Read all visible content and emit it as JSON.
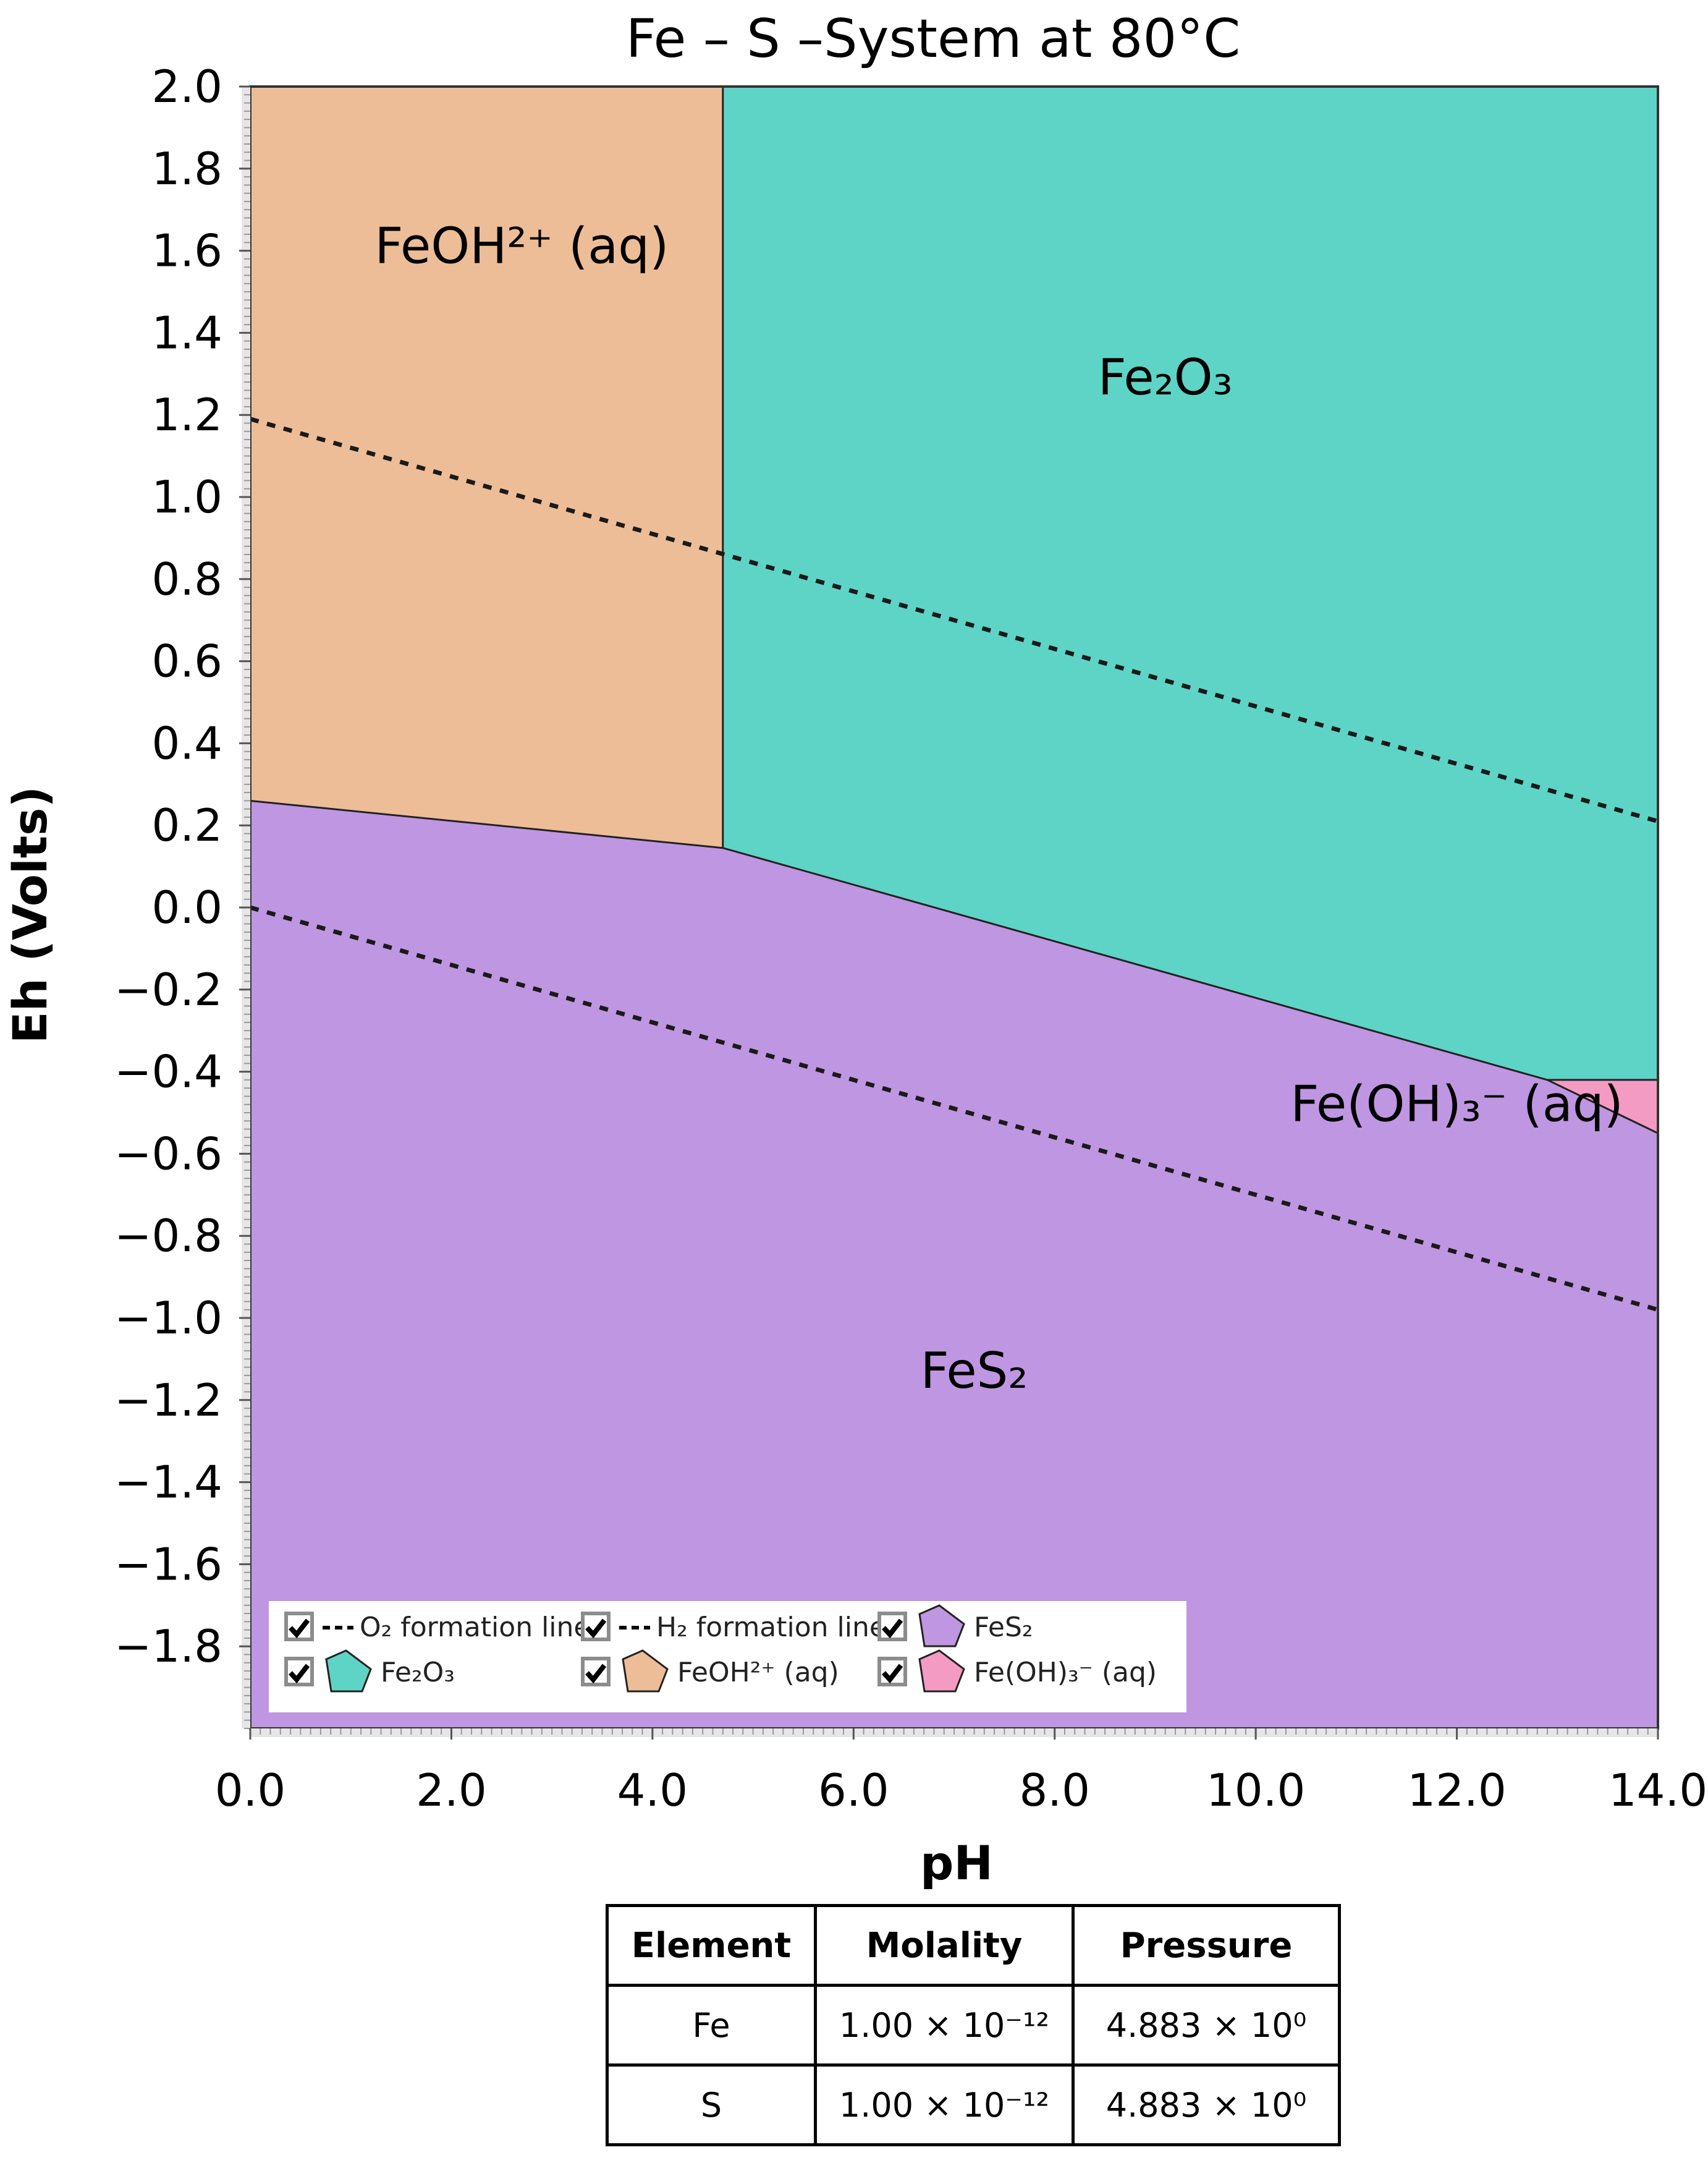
{
  "chart_data": {
    "type": "phase-diagram",
    "title": "Fe – S –System at 80°C",
    "xlabel": "pH",
    "ylabel": "Eh (Volts)",
    "xlim": [
      0,
      14
    ],
    "ylim": [
      -2.0,
      2.0
    ],
    "xticks": [
      0,
      2,
      4,
      6,
      8,
      10,
      12,
      14
    ],
    "xtick_labels": [
      "0.0",
      "2.0",
      "4.0",
      "6.0",
      "8.0",
      "10.0",
      "12.0",
      "14.0"
    ],
    "yticks": [
      2.0,
      1.8,
      1.6,
      1.4,
      1.2,
      1.0,
      0.8,
      0.6,
      0.4,
      0.2,
      0.0,
      -0.2,
      -0.4,
      -0.6,
      -0.8,
      -1.0,
      -1.2,
      -1.4,
      -1.6,
      -1.8
    ],
    "ytick_labels": [
      "2.0",
      "1.8",
      "1.6",
      "1.4",
      "1.2",
      "1.0",
      "0.8",
      "0.6",
      "0.4",
      "0.2",
      "0.0",
      "−0.2",
      "−0.4",
      "−0.6",
      "−0.8",
      "−1.0",
      "−1.2",
      "−1.4",
      "−1.6",
      "−1.8"
    ],
    "regions": [
      {
        "name": "FeOH²⁺ (aq)",
        "color": "#ECBD97",
        "label_at": [
          2.7,
          1.57
        ],
        "points": [
          [
            0,
            2.0
          ],
          [
            4.7,
            2.0
          ],
          [
            4.7,
            0.145
          ],
          [
            0,
            0.26
          ]
        ]
      },
      {
        "name": "Fe₂O₃",
        "color": "#5ED4C6",
        "label_at": [
          9.1,
          1.25
        ],
        "points": [
          [
            4.7,
            2.0
          ],
          [
            14,
            2.0
          ],
          [
            14,
            -0.42
          ],
          [
            12.9,
            -0.42
          ],
          [
            4.7,
            0.145
          ]
        ]
      },
      {
        "name": "Fe(OH)₃⁻ (aq)",
        "color": "#F49BC3",
        "label_at": [
          12.0,
          -0.52
        ],
        "points": [
          [
            12.9,
            -0.42
          ],
          [
            14,
            -0.42
          ],
          [
            14,
            -0.55
          ]
        ]
      },
      {
        "name": "FeS₂",
        "color": "#BF96E1",
        "label_at": [
          7.2,
          -1.17
        ],
        "points": [
          [
            0,
            0.26
          ],
          [
            4.7,
            0.145
          ],
          [
            12.9,
            -0.42
          ],
          [
            14,
            -0.55
          ],
          [
            14,
            -2.0
          ],
          [
            0,
            -2.0
          ]
        ]
      }
    ],
    "boundaries": [
      [
        [
          0,
          0.26
        ],
        [
          4.7,
          0.145
        ],
        [
          12.9,
          -0.42
        ],
        [
          14,
          -0.55
        ]
      ],
      [
        [
          4.7,
          2.0
        ],
        [
          4.7,
          0.145
        ]
      ],
      [
        [
          12.9,
          -0.42
        ],
        [
          14,
          -0.42
        ]
      ]
    ],
    "dashed_lines": [
      {
        "name": "O₂ formation line",
        "points": [
          [
            0,
            1.19
          ],
          [
            14,
            0.21
          ]
        ]
      },
      {
        "name": "H₂ formation line",
        "points": [
          [
            0,
            0.0
          ],
          [
            14,
            -0.98
          ]
        ]
      }
    ],
    "legend": {
      "placement": "bottom-left",
      "items": [
        {
          "label": "O₂ formation line",
          "kind": "dashed",
          "checked": true
        },
        {
          "label": "H₂ formation line",
          "kind": "dashed",
          "checked": true
        },
        {
          "label": "FeS₂",
          "kind": "swatch",
          "color": "#BF96E1",
          "checked": true
        },
        {
          "label": "Fe₂O₃",
          "kind": "swatch",
          "color": "#5ED4C6",
          "checked": true
        },
        {
          "label": "FeOH²⁺ (aq)",
          "kind": "swatch",
          "color": "#ECBD97",
          "checked": true
        },
        {
          "label": "Fe(OH)₃⁻ (aq)",
          "kind": "swatch",
          "color": "#F49BC3",
          "checked": true
        }
      ]
    }
  },
  "conditions_table": {
    "headers": [
      "Element",
      "Molality",
      "Pressure"
    ],
    "rows": [
      [
        "Fe",
        "1.00 × 10⁻¹²",
        "4.883 × 10⁰"
      ],
      [
        "S",
        "1.00 × 10⁻¹²",
        "4.883 × 10⁰"
      ]
    ]
  }
}
